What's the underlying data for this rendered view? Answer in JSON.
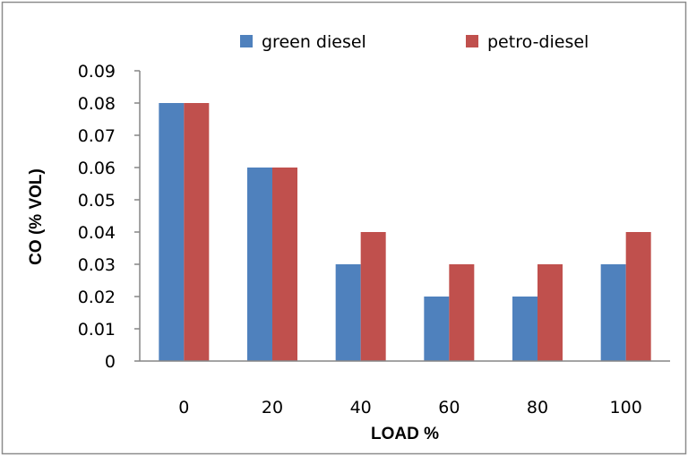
{
  "chart_data": {
    "type": "bar",
    "title": "",
    "xlabel": "LOAD %",
    "ylabel": "CO (% VOL)",
    "categories": [
      "0",
      "20",
      "40",
      "60",
      "80",
      "100"
    ],
    "series": [
      {
        "name": "green diesel",
        "color": "#4f81bd",
        "values": [
          0.08,
          0.06,
          0.03,
          0.02,
          0.02,
          0.03
        ]
      },
      {
        "name": "petro-diesel",
        "color": "#c0504d",
        "values": [
          0.08,
          0.06,
          0.04,
          0.03,
          0.03,
          0.04
        ]
      }
    ],
    "ylim": [
      0,
      0.09
    ],
    "yticks": [
      "0",
      "0.01",
      "0.02",
      "0.03",
      "0.04",
      "0.05",
      "0.06",
      "0.07",
      "0.08",
      "0.09"
    ],
    "grid": false,
    "legend_position": "top"
  }
}
